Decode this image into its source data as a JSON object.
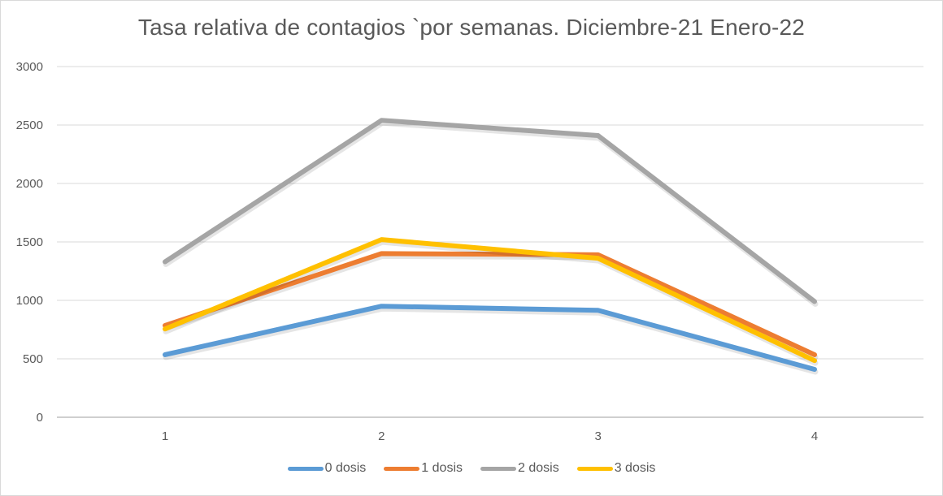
{
  "chart_data": {
    "type": "line",
    "title": "Tasa relativa de contagios `por semanas. Diciembre-21 Enero-22",
    "xlabel": "",
    "ylabel": "",
    "categories": [
      "1",
      "2",
      "3",
      "4"
    ],
    "ylim": [
      0,
      3000
    ],
    "yticks": [
      "0",
      "500",
      "1000",
      "1500",
      "2000",
      "2500",
      "3000"
    ],
    "grid": true,
    "legend_position": "bottom",
    "series": [
      {
        "name": "0 dosis",
        "color": "#5b9bd5",
        "values": [
          535,
          950,
          915,
          410
        ]
      },
      {
        "name": "1 dosis",
        "color": "#ed7d31",
        "values": [
          785,
          1400,
          1390,
          535
        ]
      },
      {
        "name": "2 dosis",
        "color": "#a5a5a5",
        "values": [
          1330,
          2540,
          2410,
          990
        ]
      },
      {
        "name": "3 dosis",
        "color": "#ffc000",
        "values": [
          755,
          1520,
          1360,
          485
        ]
      }
    ]
  }
}
